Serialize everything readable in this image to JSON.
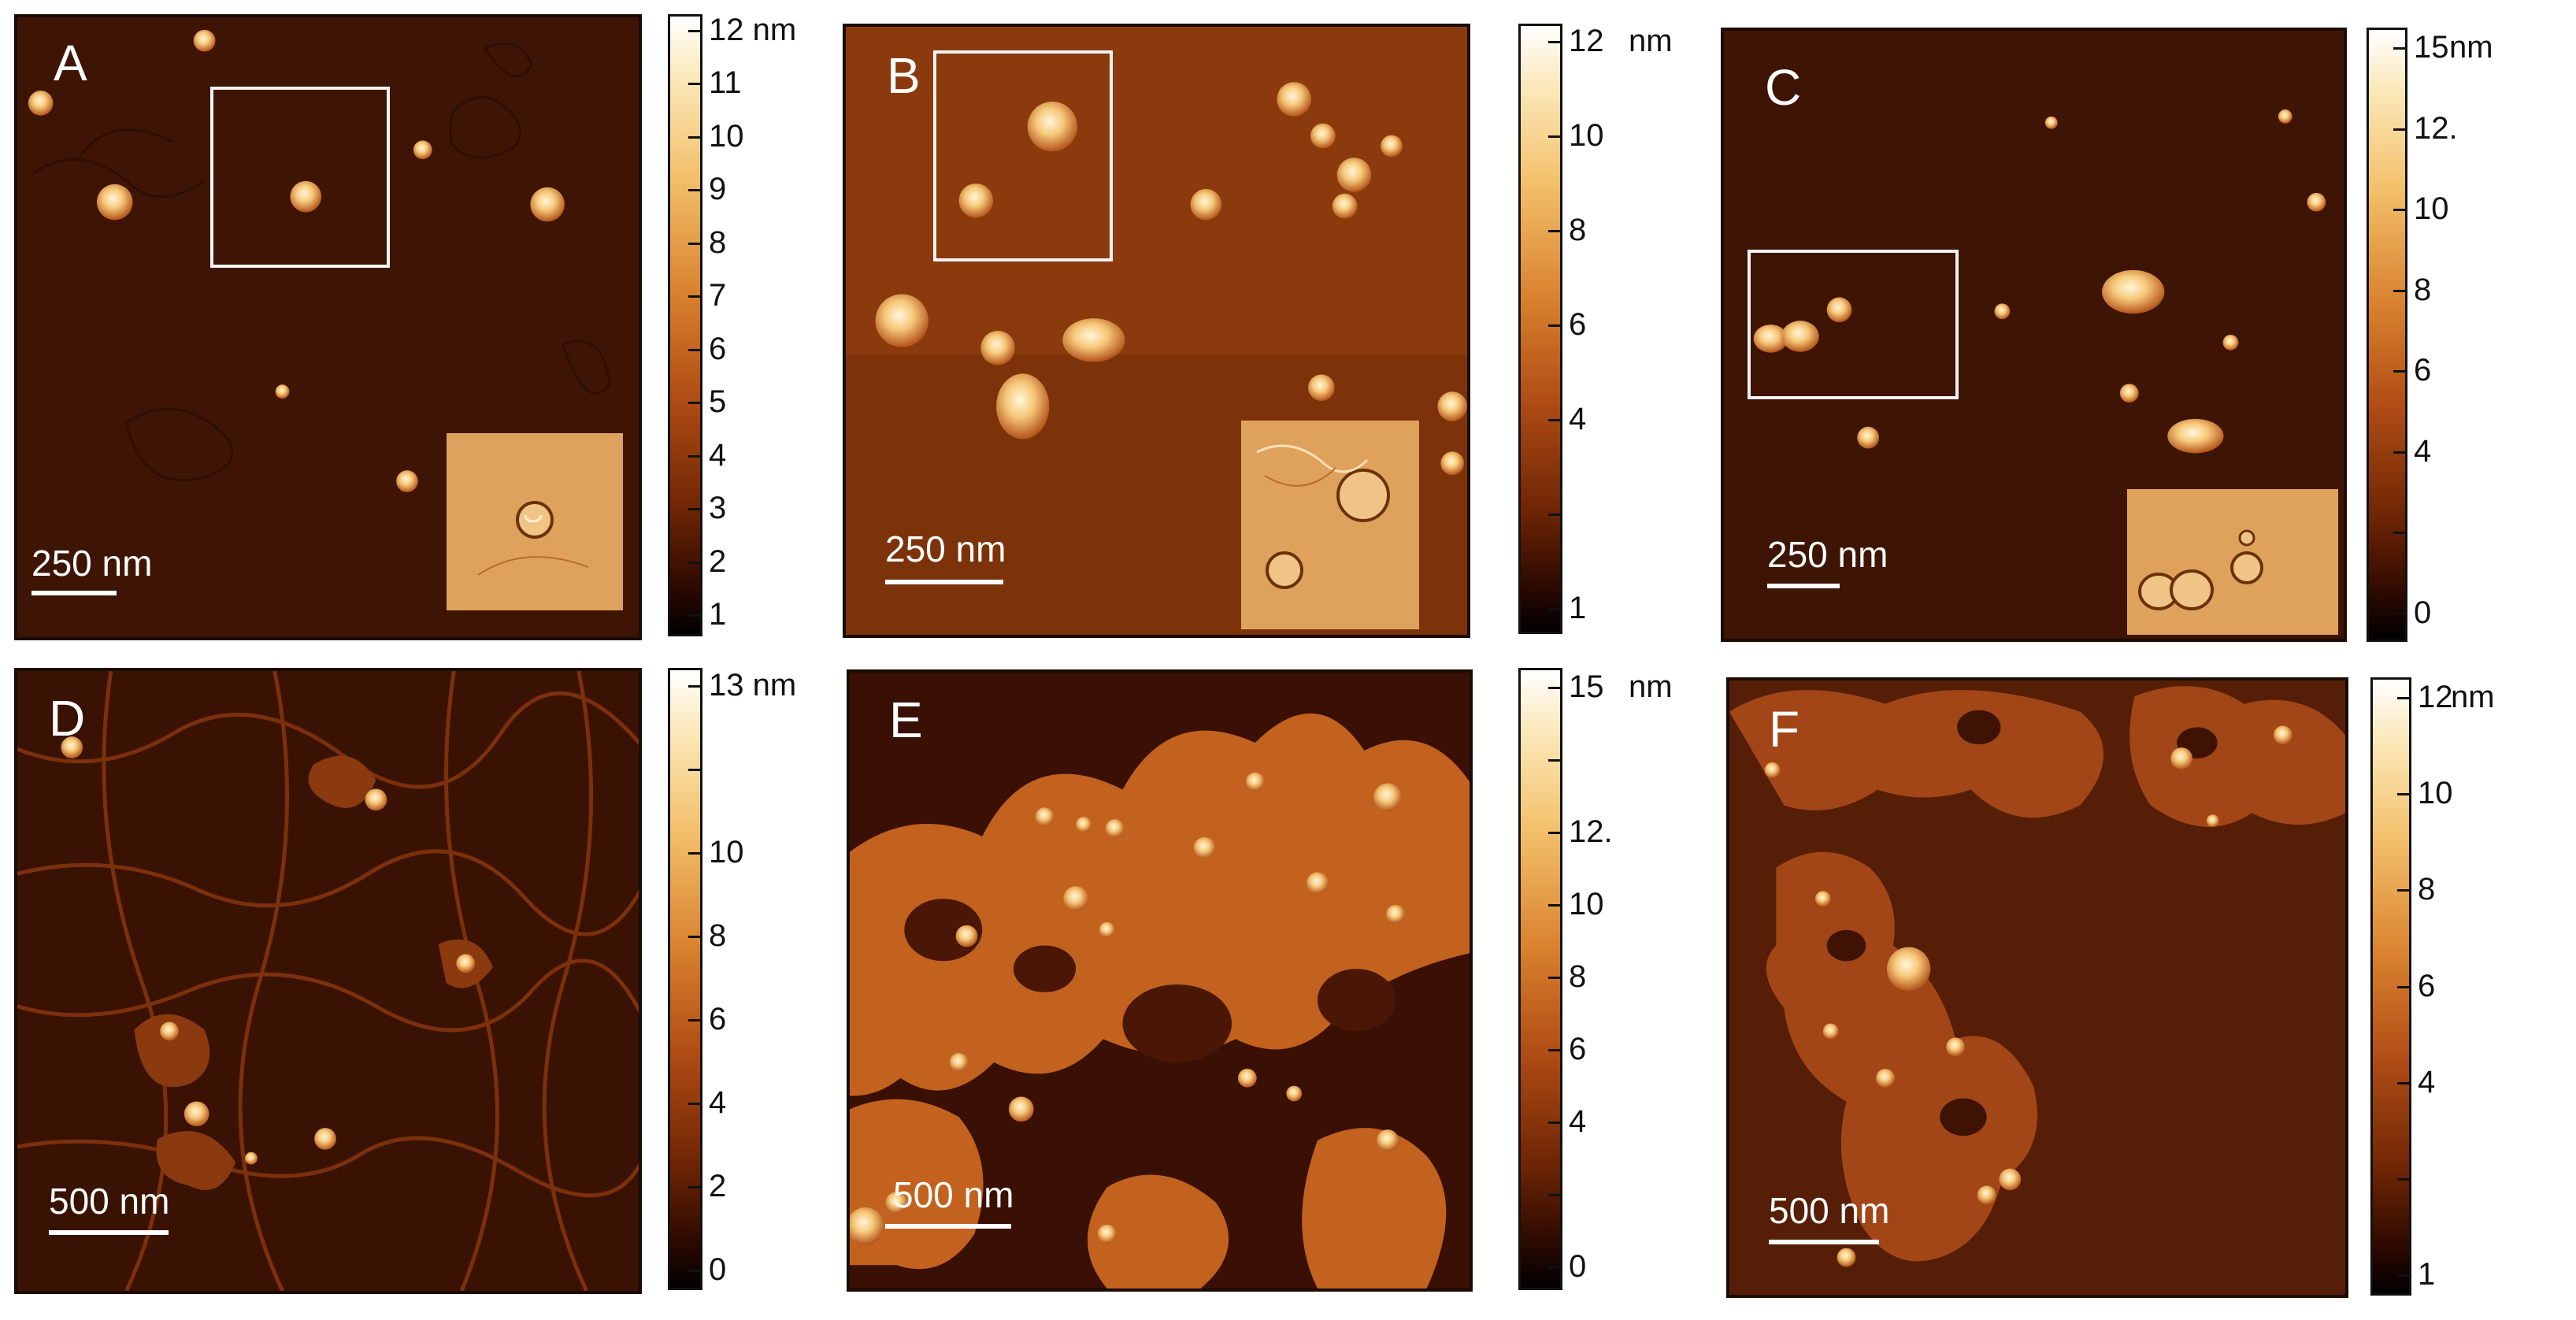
{
  "colors": {
    "afm_background": "#4a1a04",
    "particle": "#f6c879",
    "roi_box": "#f2f2f2",
    "inset_background": "#dfa25d"
  },
  "panels": [
    {
      "label": "A",
      "scale_label": "250 nm",
      "has_roi": true,
      "has_inset": true
    },
    {
      "label": "B",
      "scale_label": "250 nm",
      "has_roi": true,
      "has_inset": true
    },
    {
      "label": "C",
      "scale_label": "250 nm",
      "has_roi": true,
      "has_inset": true
    },
    {
      "label": "D",
      "scale_label": "500 nm",
      "has_roi": false,
      "has_inset": false
    },
    {
      "label": "E",
      "scale_label": "500 nm",
      "has_roi": false,
      "has_inset": false
    },
    {
      "label": "F",
      "scale_label": "500 nm",
      "has_roi": false,
      "has_inset": false
    }
  ],
  "colorbars": [
    {
      "ticks": [
        "12 nm",
        "11",
        "10",
        "9",
        "8",
        "7",
        "6",
        "5",
        "4",
        "3",
        "2",
        "1"
      ],
      "unit": ""
    },
    {
      "ticks": [
        "12",
        "10",
        "8",
        "6",
        "4",
        "",
        "1"
      ],
      "unit": "nm"
    },
    {
      "ticks": [
        "15",
        "12.",
        "10",
        "8",
        "6",
        "4",
        "",
        "0"
      ],
      "unit": "nm"
    },
    {
      "ticks": [
        "13 nm",
        "",
        "10",
        "8",
        "6",
        "4",
        "2",
        "0"
      ],
      "unit": ""
    },
    {
      "ticks": [
        "15",
        "",
        "12.",
        "10",
        "8",
        "6",
        "4",
        "",
        "0"
      ],
      "unit": "nm"
    },
    {
      "ticks": [
        "12",
        "10",
        "8",
        "6",
        "4",
        "",
        "1"
      ],
      "unit": "nm"
    }
  ]
}
